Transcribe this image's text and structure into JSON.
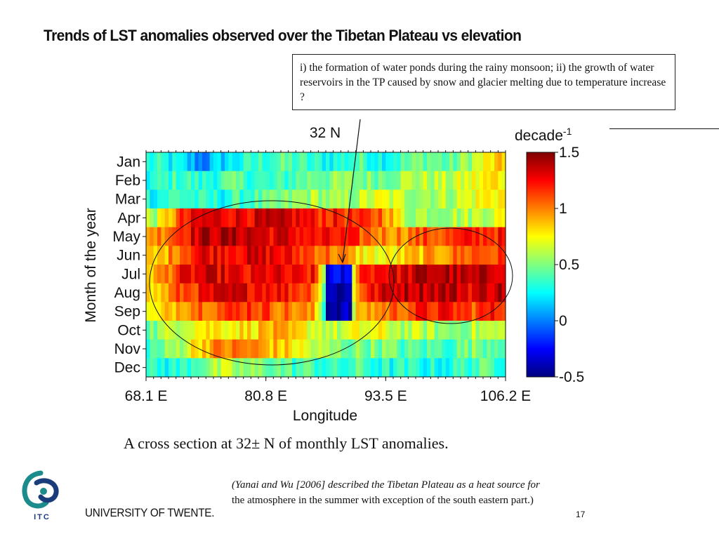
{
  "slide": {
    "title": "Trends of LST anomalies observed over the Tibetan Plateau vs elevation",
    "callout": "i) the formation of water ponds during the rainy monsoon; ii) the growth of water reservoirs in the TP caused by snow and glacier melting due to temperature increase ?",
    "caption": "A cross section at 32± N of monthly LST anomalies.",
    "citation_line1": "(Yanai and Wu [2006] described the Tibetan Plateau as a heat source for",
    "citation_line2": "the atmosphere in the summer with exception of the south eastern part.)",
    "university": "UNIVERSITY OF TWENTE.",
    "logo_text": "ITC",
    "page_number": "17"
  },
  "chart_data": {
    "type": "heatmap",
    "latitude_label": "32 N",
    "xlabel": "Longitude",
    "ylabel": "Month of the year",
    "xlim": [
      68.1,
      106.2
    ],
    "x_ticks": [
      68.1,
      80.8,
      93.5,
      106.2
    ],
    "x_tick_labels": [
      "68.1 E",
      "80.8 E",
      "93.5 E",
      "106.2 E"
    ],
    "months": [
      "Jan",
      "Feb",
      "Mar",
      "Apr",
      "May",
      "Jun",
      "Jul",
      "Aug",
      "Sep",
      "Oct",
      "Nov",
      "Dec"
    ],
    "colorbar": {
      "label": "decade",
      "label_superscript": "-1",
      "min": -0.5,
      "max": 1.5,
      "ticks": [
        1.5,
        1,
        0.5,
        0,
        -0.5
      ],
      "tick_labels": [
        "1.5",
        "1",
        "0.5",
        "0",
        "-0.5"
      ]
    },
    "value_grid": {
      "note_columns": "16 longitude bins, 68.1E to 106.2E",
      "Jan": [
        0.3,
        0.2,
        0.0,
        0.2,
        0.3,
        0.4,
        0.4,
        0.3,
        0.3,
        0.4,
        0.3,
        0.4,
        0.5,
        0.4,
        0.6,
        0.8
      ],
      "Feb": [
        0.3,
        0.4,
        0.3,
        0.4,
        0.4,
        0.3,
        0.4,
        0.5,
        0.5,
        0.5,
        0.5,
        0.6,
        0.6,
        0.6,
        0.7,
        0.8
      ],
      "Mar": [
        0.3,
        0.4,
        0.3,
        0.3,
        0.4,
        0.4,
        0.5,
        0.6,
        0.5,
        0.6,
        0.7,
        0.6,
        0.6,
        0.6,
        0.7,
        0.8
      ],
      "Apr": [
        0.6,
        1.1,
        1.3,
        1.3,
        1.3,
        1.3,
        1.3,
        1.2,
        1.2,
        1.1,
        1.1,
        0.6,
        0.6,
        0.6,
        0.6,
        0.7
      ],
      "May": [
        1.0,
        1.2,
        1.4,
        1.4,
        1.4,
        1.3,
        1.3,
        1.2,
        1.2,
        1.1,
        1.0,
        1.0,
        1.1,
        1.1,
        1.2,
        1.2
      ],
      "Jun": [
        0.8,
        1.1,
        1.3,
        1.3,
        1.3,
        1.3,
        1.2,
        1.1,
        1.0,
        0.8,
        0.7,
        0.8,
        0.9,
        1.0,
        1.1,
        1.1
      ],
      "Jul": [
        0.9,
        1.2,
        1.3,
        1.3,
        1.2,
        1.3,
        1.2,
        1.2,
        -0.3,
        1.2,
        1.3,
        1.3,
        1.4,
        1.4,
        1.3,
        1.4
      ],
      "Aug": [
        0.8,
        1.1,
        1.2,
        1.3,
        1.3,
        1.3,
        1.2,
        1.1,
        -0.4,
        1.1,
        1.3,
        1.4,
        1.4,
        1.4,
        1.3,
        1.4
      ],
      "Sep": [
        0.7,
        1.0,
        1.1,
        1.1,
        1.2,
        1.1,
        1.0,
        0.9,
        -0.4,
        0.9,
        1.0,
        1.1,
        1.2,
        1.2,
        1.1,
        1.2
      ],
      "Oct": [
        0.5,
        0.7,
        0.8,
        0.8,
        0.8,
        0.9,
        0.8,
        0.7,
        0.6,
        0.7,
        0.7,
        0.6,
        0.6,
        0.5,
        0.6,
        0.6
      ],
      "Nov": [
        0.4,
        0.6,
        0.9,
        1.0,
        1.0,
        0.9,
        0.8,
        0.6,
        0.5,
        0.5,
        0.5,
        0.4,
        0.4,
        0.4,
        0.5,
        0.5
      ],
      "Dec": [
        0.3,
        0.3,
        0.5,
        0.6,
        0.5,
        0.5,
        0.4,
        0.4,
        0.3,
        0.4,
        0.3,
        0.3,
        0.3,
        0.3,
        0.4,
        0.4
      ]
    },
    "annotations": [
      "ellipse around west warming region (Apr-Nov, ~68-93E)",
      "ellipse around east summer warming (May-Sep, ~96-106E)",
      "arrow from callout to negative anomaly near 88E (Jul-Sep)"
    ]
  },
  "colors": {
    "colormap": [
      "#00007f",
      "#0000ff",
      "#007fff",
      "#00ffff",
      "#7fff7f",
      "#ffff00",
      "#ff7f00",
      "#ff0000",
      "#7f0000"
    ],
    "logo_teal": "#1c8b8b",
    "logo_blue": "#1b3c7a"
  }
}
